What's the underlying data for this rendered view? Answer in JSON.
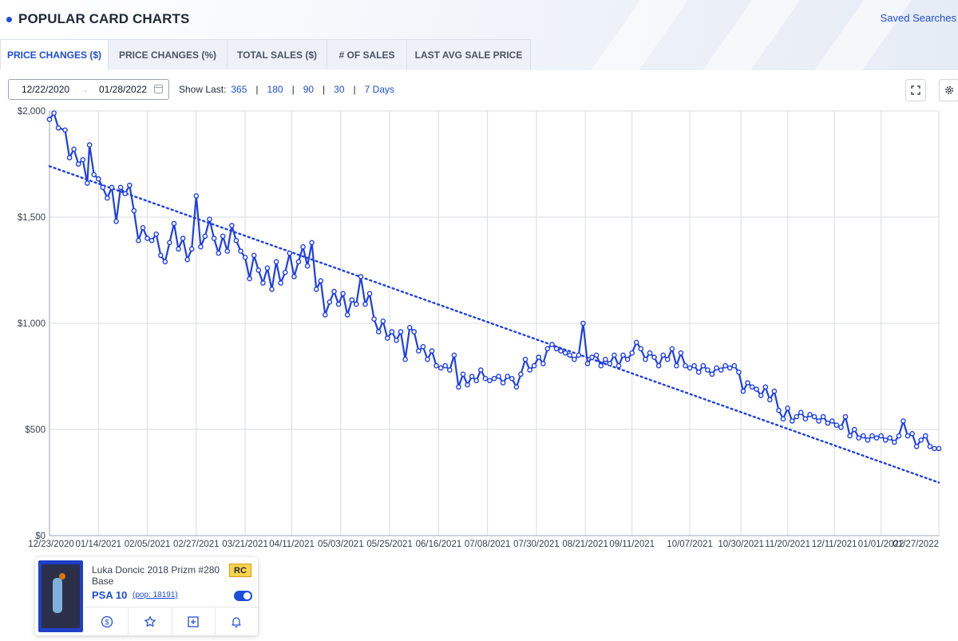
{
  "page": {
    "title": "POPULAR CARD CHARTS",
    "saved_searches": "Saved Searches",
    "accent_color": "#1d4ed8"
  },
  "tabs": [
    {
      "label": "PRICE CHANGES ($)",
      "active": true
    },
    {
      "label": "PRICE CHANGES (%)",
      "active": false
    },
    {
      "label": "TOTAL SALES ($)",
      "active": false
    },
    {
      "label": "# OF SALES",
      "active": false
    },
    {
      "label": "LAST AVG SALE PRICE",
      "active": false
    }
  ],
  "filters": {
    "date_from": "12/22/2020",
    "date_separator": "→",
    "date_to": "01/28/2022",
    "show_last_label": "Show Last:",
    "show_last_options": [
      "365",
      "180",
      "90",
      "30",
      "7 Days"
    ],
    "separator": "|"
  },
  "toolbar": {
    "fullscreen_icon": "fullscreen-icon",
    "settings_icon": "gear-icon"
  },
  "chart_data": {
    "type": "line",
    "title": "",
    "xlabel": "",
    "ylabel": "",
    "ylim": [
      0,
      2000
    ],
    "y_ticks": [
      "$0",
      "$500",
      "$1,000",
      "$1,500",
      "$2,000"
    ],
    "y_tick_values": [
      0,
      500,
      1000,
      1500,
      2000
    ],
    "x_range": [
      "2020-12-23",
      "2022-01-27"
    ],
    "x_ticks": [
      {
        "label": "12/23/2020",
        "date": "2020-12-23"
      },
      {
        "label": "01/14/2021",
        "date": "2021-01-14"
      },
      {
        "label": "02/05/2021",
        "date": "2021-02-05"
      },
      {
        "label": "02/27/2021",
        "date": "2021-02-27"
      },
      {
        "label": "03/21/2021",
        "date": "2021-03-21"
      },
      {
        "label": "04/11/2021",
        "date": "2021-04-11"
      },
      {
        "label": "05/03/2021",
        "date": "2021-05-03"
      },
      {
        "label": "05/25/2021",
        "date": "2021-05-25"
      },
      {
        "label": "06/16/2021",
        "date": "2021-06-16"
      },
      {
        "label": "07/08/2021",
        "date": "2021-07-08"
      },
      {
        "label": "07/30/2021",
        "date": "2021-07-30"
      },
      {
        "label": "08/21/2021",
        "date": "2021-08-21"
      },
      {
        "label": "09/11/2021",
        "date": "2021-09-11"
      },
      {
        "label": "10/07/2021",
        "date": "2021-10-07"
      },
      {
        "label": "10/30/2021",
        "date": "2021-10-30"
      },
      {
        "label": "11/20/2021",
        "date": "2021-11-20"
      },
      {
        "label": "12/11/2021",
        "date": "2021-12-11"
      },
      {
        "label": "01/01/2022",
        "date": "2022-01-01"
      },
      {
        "label": "01/27/2022",
        "date": "2022-01-27"
      }
    ],
    "grid": true,
    "legend": "none",
    "series": [
      {
        "line_color": "#1e3fe6",
        "style": "solid",
        "markers": true,
        "points": [
          [
            "2020-12-23",
            1960
          ],
          [
            "2020-12-25",
            1990
          ],
          [
            "2020-12-27",
            1920
          ],
          [
            "2020-12-30",
            1910
          ],
          [
            "2021-01-01",
            1780
          ],
          [
            "2021-01-03",
            1820
          ],
          [
            "2021-01-05",
            1750
          ],
          [
            "2021-01-07",
            1770
          ],
          [
            "2021-01-09",
            1660
          ],
          [
            "2021-01-10",
            1840
          ],
          [
            "2021-01-12",
            1700
          ],
          [
            "2021-01-14",
            1680
          ],
          [
            "2021-01-16",
            1640
          ],
          [
            "2021-01-18",
            1590
          ],
          [
            "2021-01-20",
            1640
          ],
          [
            "2021-01-22",
            1480
          ],
          [
            "2021-01-24",
            1640
          ],
          [
            "2021-01-26",
            1610
          ],
          [
            "2021-01-28",
            1650
          ],
          [
            "2021-01-30",
            1530
          ],
          [
            "2021-02-01",
            1390
          ],
          [
            "2021-02-03",
            1450
          ],
          [
            "2021-02-05",
            1400
          ],
          [
            "2021-02-07",
            1390
          ],
          [
            "2021-02-09",
            1420
          ],
          [
            "2021-02-11",
            1320
          ],
          [
            "2021-02-13",
            1290
          ],
          [
            "2021-02-15",
            1380
          ],
          [
            "2021-02-17",
            1470
          ],
          [
            "2021-02-19",
            1350
          ],
          [
            "2021-02-21",
            1400
          ],
          [
            "2021-02-23",
            1300
          ],
          [
            "2021-02-25",
            1350
          ],
          [
            "2021-02-27",
            1600
          ],
          [
            "2021-03-01",
            1360
          ],
          [
            "2021-03-03",
            1410
          ],
          [
            "2021-03-05",
            1490
          ],
          [
            "2021-03-07",
            1400
          ],
          [
            "2021-03-09",
            1330
          ],
          [
            "2021-03-11",
            1410
          ],
          [
            "2021-03-13",
            1340
          ],
          [
            "2021-03-15",
            1460
          ],
          [
            "2021-03-17",
            1390
          ],
          [
            "2021-03-19",
            1340
          ],
          [
            "2021-03-21",
            1310
          ],
          [
            "2021-03-23",
            1210
          ],
          [
            "2021-03-25",
            1320
          ],
          [
            "2021-03-27",
            1250
          ],
          [
            "2021-03-29",
            1190
          ],
          [
            "2021-03-31",
            1260
          ],
          [
            "2021-04-02",
            1160
          ],
          [
            "2021-04-04",
            1290
          ],
          [
            "2021-04-06",
            1190
          ],
          [
            "2021-04-08",
            1240
          ],
          [
            "2021-04-10",
            1330
          ],
          [
            "2021-04-12",
            1220
          ],
          [
            "2021-04-14",
            1290
          ],
          [
            "2021-04-16",
            1360
          ],
          [
            "2021-04-18",
            1270
          ],
          [
            "2021-04-20",
            1380
          ],
          [
            "2021-04-22",
            1160
          ],
          [
            "2021-04-24",
            1200
          ],
          [
            "2021-04-26",
            1040
          ],
          [
            "2021-04-28",
            1100
          ],
          [
            "2021-04-30",
            1150
          ],
          [
            "2021-05-02",
            1090
          ],
          [
            "2021-05-04",
            1140
          ],
          [
            "2021-05-06",
            1040
          ],
          [
            "2021-05-08",
            1110
          ],
          [
            "2021-05-10",
            1090
          ],
          [
            "2021-05-12",
            1220
          ],
          [
            "2021-05-14",
            1090
          ],
          [
            "2021-05-16",
            1140
          ],
          [
            "2021-05-18",
            1020
          ],
          [
            "2021-05-20",
            960
          ],
          [
            "2021-05-22",
            1010
          ],
          [
            "2021-05-24",
            930
          ],
          [
            "2021-05-26",
            960
          ],
          [
            "2021-05-28",
            920
          ],
          [
            "2021-05-30",
            960
          ],
          [
            "2021-06-01",
            830
          ],
          [
            "2021-06-03",
            980
          ],
          [
            "2021-06-05",
            960
          ],
          [
            "2021-06-07",
            870
          ],
          [
            "2021-06-09",
            890
          ],
          [
            "2021-06-11",
            830
          ],
          [
            "2021-06-13",
            870
          ],
          [
            "2021-06-15",
            800
          ],
          [
            "2021-06-17",
            790
          ],
          [
            "2021-06-19",
            800
          ],
          [
            "2021-06-21",
            780
          ],
          [
            "2021-06-23",
            850
          ],
          [
            "2021-06-25",
            700
          ],
          [
            "2021-06-27",
            760
          ],
          [
            "2021-06-29",
            710
          ],
          [
            "2021-07-01",
            750
          ],
          [
            "2021-07-03",
            730
          ],
          [
            "2021-07-05",
            780
          ],
          [
            "2021-07-07",
            740
          ],
          [
            "2021-07-09",
            730
          ],
          [
            "2021-07-11",
            740
          ],
          [
            "2021-07-13",
            750
          ],
          [
            "2021-07-15",
            720
          ],
          [
            "2021-07-17",
            750
          ],
          [
            "2021-07-19",
            740
          ],
          [
            "2021-07-21",
            700
          ],
          [
            "2021-07-23",
            760
          ],
          [
            "2021-07-25",
            830
          ],
          [
            "2021-07-27",
            780
          ],
          [
            "2021-07-29",
            800
          ],
          [
            "2021-07-31",
            840
          ],
          [
            "2021-08-02",
            810
          ],
          [
            "2021-08-04",
            880
          ],
          [
            "2021-08-06",
            900
          ],
          [
            "2021-08-08",
            880
          ],
          [
            "2021-08-10",
            870
          ],
          [
            "2021-08-12",
            860
          ],
          [
            "2021-08-14",
            850
          ],
          [
            "2021-08-16",
            830
          ],
          [
            "2021-08-18",
            850
          ],
          [
            "2021-08-20",
            1000
          ],
          [
            "2021-08-22",
            810
          ],
          [
            "2021-08-24",
            840
          ],
          [
            "2021-08-26",
            850
          ],
          [
            "2021-08-28",
            800
          ],
          [
            "2021-08-30",
            830
          ],
          [
            "2021-09-01",
            810
          ],
          [
            "2021-09-03",
            850
          ],
          [
            "2021-09-05",
            800
          ],
          [
            "2021-09-07",
            850
          ],
          [
            "2021-09-09",
            830
          ],
          [
            "2021-09-11",
            860
          ],
          [
            "2021-09-13",
            910
          ],
          [
            "2021-09-15",
            880
          ],
          [
            "2021-09-17",
            830
          ],
          [
            "2021-09-19",
            860
          ],
          [
            "2021-09-21",
            840
          ],
          [
            "2021-09-23",
            800
          ],
          [
            "2021-09-25",
            850
          ],
          [
            "2021-09-27",
            830
          ],
          [
            "2021-09-29",
            880
          ],
          [
            "2021-10-01",
            800
          ],
          [
            "2021-10-03",
            860
          ],
          [
            "2021-10-05",
            800
          ],
          [
            "2021-10-07",
            790
          ],
          [
            "2021-10-09",
            800
          ],
          [
            "2021-10-11",
            770
          ],
          [
            "2021-10-13",
            800
          ],
          [
            "2021-10-15",
            780
          ],
          [
            "2021-10-17",
            760
          ],
          [
            "2021-10-19",
            790
          ],
          [
            "2021-10-21",
            780
          ],
          [
            "2021-10-23",
            800
          ],
          [
            "2021-10-25",
            790
          ],
          [
            "2021-10-27",
            800
          ],
          [
            "2021-10-29",
            770
          ],
          [
            "2021-10-31",
            680
          ],
          [
            "2021-11-02",
            720
          ],
          [
            "2021-11-04",
            700
          ],
          [
            "2021-11-06",
            690
          ],
          [
            "2021-11-08",
            660
          ],
          [
            "2021-11-10",
            700
          ],
          [
            "2021-11-12",
            640
          ],
          [
            "2021-11-14",
            680
          ],
          [
            "2021-11-16",
            590
          ],
          [
            "2021-11-18",
            550
          ],
          [
            "2021-11-20",
            600
          ],
          [
            "2021-11-22",
            540
          ],
          [
            "2021-11-24",
            560
          ],
          [
            "2021-11-26",
            580
          ],
          [
            "2021-11-28",
            550
          ],
          [
            "2021-11-30",
            570
          ],
          [
            "2021-12-02",
            560
          ],
          [
            "2021-12-04",
            540
          ],
          [
            "2021-12-06",
            560
          ],
          [
            "2021-12-08",
            530
          ],
          [
            "2021-12-10",
            540
          ],
          [
            "2021-12-12",
            520
          ],
          [
            "2021-12-14",
            510
          ],
          [
            "2021-12-16",
            560
          ],
          [
            "2021-12-18",
            470
          ],
          [
            "2021-12-20",
            500
          ],
          [
            "2021-12-22",
            460
          ],
          [
            "2021-12-24",
            470
          ],
          [
            "2021-12-26",
            450
          ],
          [
            "2021-12-28",
            470
          ],
          [
            "2021-12-30",
            460
          ],
          [
            "2022-01-01",
            470
          ],
          [
            "2022-01-03",
            450
          ],
          [
            "2022-01-05",
            460
          ],
          [
            "2022-01-07",
            440
          ],
          [
            "2022-01-09",
            470
          ],
          [
            "2022-01-11",
            540
          ],
          [
            "2022-01-13",
            470
          ],
          [
            "2022-01-15",
            480
          ],
          [
            "2022-01-17",
            420
          ],
          [
            "2022-01-19",
            450
          ],
          [
            "2022-01-21",
            470
          ],
          [
            "2022-01-23",
            420
          ],
          [
            "2022-01-25",
            410
          ],
          [
            "2022-01-27",
            410
          ]
        ]
      },
      {
        "line_color": "#1e3fe6",
        "style": "dotted",
        "markers": false,
        "points": [
          [
            "2020-12-23",
            1740
          ],
          [
            "2022-01-27",
            250
          ]
        ]
      }
    ]
  },
  "card": {
    "name": "Luka Doncic 2018 Prizm #280 Base",
    "badge": "RC",
    "grade": "PSA 10",
    "pop_text": "(pop: 18191)",
    "tracking_enabled": true,
    "actions": [
      "dollar-icon",
      "star-icon",
      "add-box-icon",
      "bell-icon"
    ]
  }
}
